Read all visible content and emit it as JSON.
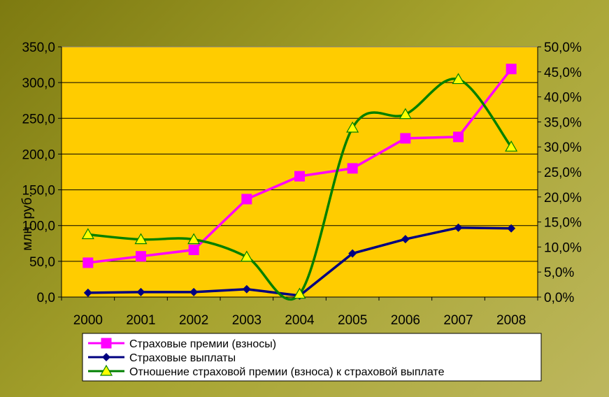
{
  "chart_data": {
    "type": "line",
    "title": "",
    "ylabel": "млн. руб.",
    "categories": [
      "2000",
      "2001",
      "2002",
      "2003",
      "2004",
      "2005",
      "2006",
      "2007",
      "2008"
    ],
    "y_left": {
      "range": [
        0,
        350
      ],
      "ticks": [
        "0,0",
        "50,0",
        "100,0",
        "150,0",
        "200,0",
        "250,0",
        "300,0",
        "350,0"
      ]
    },
    "y_right": {
      "range": [
        0,
        0.5
      ],
      "ticks": [
        "0,0%",
        "5,0%",
        "10,0%",
        "15,0%",
        "20,0%",
        "25,0%",
        "30,0%",
        "35,0%",
        "40,0%",
        "45,0%",
        "50,0%"
      ]
    },
    "grid": true,
    "legend_position": "bottom",
    "series": [
      {
        "name": "Страховые премии (взносы)",
        "axis": "left",
        "color": "#ff00ff",
        "marker": "square",
        "smooth": false,
        "values": [
          48,
          57,
          66,
          137,
          169,
          180,
          222,
          224,
          319
        ]
      },
      {
        "name": "Страховые выплаты",
        "axis": "left",
        "color": "#000080",
        "marker": "diamond",
        "smooth": false,
        "values": [
          6,
          7,
          7,
          11,
          2,
          61,
          81,
          97,
          96
        ]
      },
      {
        "name": "Отношение страховой премии (взноса) к страховой выплате",
        "axis": "right",
        "color": "#008000",
        "marker": "triangle",
        "marker_fill": "#ffff00",
        "smooth": true,
        "values": [
          0.125,
          0.115,
          0.115,
          0.08,
          0.006,
          0.338,
          0.365,
          0.435,
          0.3
        ]
      }
    ]
  },
  "colors": {
    "plot_bg": "#ffcc00",
    "gridline": "#000000"
  }
}
